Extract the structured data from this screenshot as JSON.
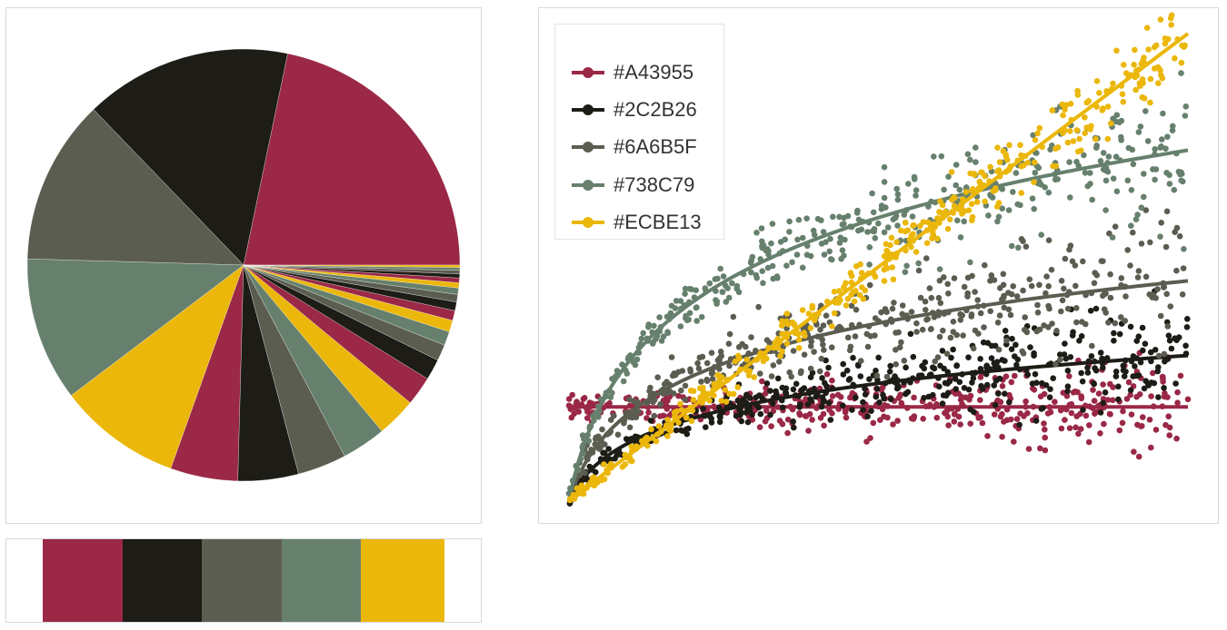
{
  "palette": [
    {
      "hex": "#A43955",
      "fill": "#9a2846",
      "label": "#A43955"
    },
    {
      "hex": "#2C2B26",
      "fill": "#1d1c16",
      "label": "#2C2B26"
    },
    {
      "hex": "#6A6B5F",
      "fill": "#5c5d51",
      "label": "#6A6B5F"
    },
    {
      "hex": "#738C79",
      "fill": "#66806d",
      "label": "#738C79"
    },
    {
      "hex": "#ECBE13",
      "fill": "#ebb70a",
      "label": "#ECBE13"
    }
  ],
  "chart_data": [
    {
      "type": "pie",
      "title": "",
      "slice_colors_cycle": [
        "#9a2846",
        "#1d1c16",
        "#5c5d51",
        "#66806d",
        "#ebb70a"
      ],
      "values": [
        25.0,
        17.8,
        14.2,
        12.4,
        10.6,
        5.8,
        5.2,
        4.2,
        3.8,
        3.4,
        2.5,
        1.8,
        1.4,
        1.2,
        1.0,
        0.85,
        0.75,
        0.65,
        0.55,
        0.45,
        0.4,
        0.35,
        0.3,
        0.25,
        0.2
      ]
    },
    {
      "type": "scatter",
      "title": "",
      "xlabel": "",
      "ylabel": "",
      "legend_position": "top-left",
      "grid": false,
      "series": [
        {
          "name": "#A43955",
          "color": "#9a2846",
          "trend": "flat",
          "start": 0.2,
          "end": 0.2,
          "spread": 0.035
        },
        {
          "name": "#2C2B26",
          "color": "#1d1c16",
          "trend": "log",
          "start": 0.0,
          "end": 0.31,
          "spread": 0.05
        },
        {
          "name": "#6A6B5F",
          "color": "#5c5d51",
          "trend": "log",
          "start": 0.0,
          "end": 0.47,
          "spread": 0.07
        },
        {
          "name": "#738C79",
          "color": "#66806d",
          "trend": "log",
          "start": 0.0,
          "end": 0.75,
          "spread": 0.07
        },
        {
          "name": "#ECBE13",
          "color": "#ebb70a",
          "trend": "linear",
          "start": 0.0,
          "end": 1.0,
          "spread": 0.04
        }
      ]
    }
  ]
}
